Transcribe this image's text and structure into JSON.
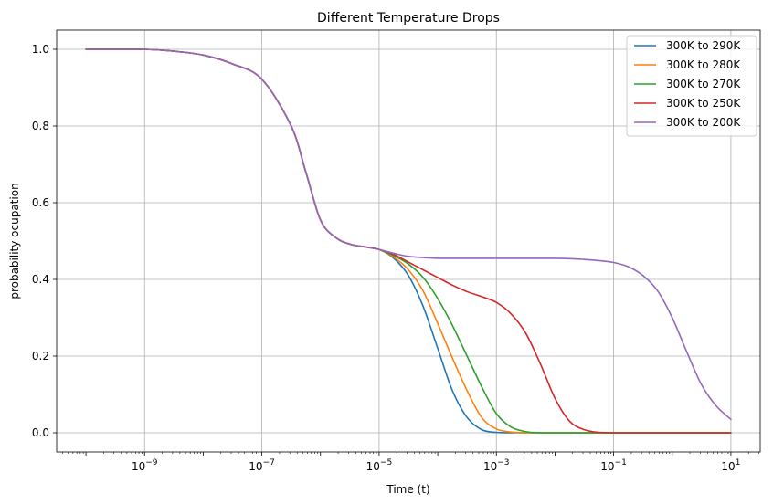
{
  "chart_data": {
    "type": "line",
    "title": "Different Temperature Drops",
    "xlabel": "Time (t)",
    "ylabel": "probability ocupation",
    "xscale": "log",
    "xlim_exp": [
      -10.5,
      1.5
    ],
    "ylim": [
      -0.05,
      1.05
    ],
    "x_ticks": [
      {
        "exp": -9,
        "base": "10",
        "sup": "−9"
      },
      {
        "exp": -7,
        "base": "10",
        "sup": "−7"
      },
      {
        "exp": -5,
        "base": "10",
        "sup": "−5"
      },
      {
        "exp": -3,
        "base": "10",
        "sup": "−3"
      },
      {
        "exp": -1,
        "base": "10",
        "sup": "−1"
      },
      {
        "exp": 1,
        "base": "10",
        "sup": "1"
      }
    ],
    "y_ticks": [
      {
        "value": 0.0,
        "label": "0.0"
      },
      {
        "value": 0.2,
        "label": "0.2"
      },
      {
        "value": 0.4,
        "label": "0.4"
      },
      {
        "value": 0.6,
        "label": "0.6"
      },
      {
        "value": 0.8,
        "label": "0.8"
      },
      {
        "value": 1.0,
        "label": "1.0"
      }
    ],
    "grid": true,
    "legend_position": "top-right",
    "x_exponents": [
      -10,
      -9,
      -8.5,
      -8,
      -7.5,
      -7,
      -6.5,
      -6.25,
      -6,
      -5.75,
      -5.5,
      -5.25,
      -5,
      -4.75,
      -4.5,
      -4.25,
      -4,
      -3.75,
      -3.5,
      -3.25,
      -3,
      -2.75,
      -2.5,
      -2.25,
      -2,
      -1.75,
      -1.5,
      -1.25,
      -1,
      -0.75,
      -0.5,
      -0.25,
      0,
      0.25,
      0.5,
      0.75,
      1
    ],
    "series": [
      {
        "name": "300K to 290K",
        "color": "#1f77b4",
        "values": [
          1.0,
          1.0,
          0.995,
          0.985,
          0.962,
          0.922,
          0.8,
          0.68,
          0.555,
          0.51,
          0.492,
          0.485,
          0.478,
          0.455,
          0.41,
          0.33,
          0.22,
          0.11,
          0.04,
          0.008,
          0.001,
          0,
          0,
          0,
          0,
          0,
          0,
          0,
          0,
          0,
          0,
          0,
          0,
          0,
          0,
          0,
          0
        ]
      },
      {
        "name": "300K to 280K",
        "color": "#ff7f0e",
        "values": [
          1.0,
          1.0,
          0.995,
          0.985,
          0.962,
          0.922,
          0.8,
          0.68,
          0.555,
          0.51,
          0.492,
          0.485,
          0.478,
          0.458,
          0.425,
          0.37,
          0.285,
          0.195,
          0.11,
          0.04,
          0.01,
          0.002,
          0,
          0,
          0,
          0,
          0,
          0,
          0,
          0,
          0,
          0,
          0,
          0,
          0,
          0,
          0
        ]
      },
      {
        "name": "300K to 270K",
        "color": "#2ca02c",
        "values": [
          1.0,
          1.0,
          0.995,
          0.985,
          0.962,
          0.922,
          0.8,
          0.68,
          0.555,
          0.51,
          0.492,
          0.485,
          0.478,
          0.462,
          0.44,
          0.405,
          0.35,
          0.28,
          0.2,
          0.12,
          0.05,
          0.015,
          0.003,
          0,
          0,
          0,
          0,
          0,
          0,
          0,
          0,
          0,
          0,
          0,
          0,
          0,
          0
        ]
      },
      {
        "name": "300K to 250K",
        "color": "#d62728",
        "values": [
          1.0,
          1.0,
          0.995,
          0.985,
          0.962,
          0.922,
          0.8,
          0.68,
          0.555,
          0.51,
          0.492,
          0.485,
          0.478,
          0.465,
          0.445,
          0.425,
          0.405,
          0.385,
          0.368,
          0.355,
          0.34,
          0.31,
          0.26,
          0.18,
          0.09,
          0.03,
          0.008,
          0.001,
          0,
          0,
          0,
          0,
          0,
          0,
          0,
          0,
          0
        ]
      },
      {
        "name": "300K to 200K",
        "color": "#9467bd",
        "values": [
          1.0,
          1.0,
          0.995,
          0.985,
          0.962,
          0.922,
          0.8,
          0.68,
          0.555,
          0.51,
          0.492,
          0.485,
          0.478,
          0.468,
          0.46,
          0.457,
          0.455,
          0.455,
          0.455,
          0.455,
          0.455,
          0.455,
          0.455,
          0.455,
          0.455,
          0.454,
          0.452,
          0.449,
          0.444,
          0.433,
          0.41,
          0.37,
          0.3,
          0.21,
          0.125,
          0.07,
          0.035
        ]
      }
    ]
  }
}
